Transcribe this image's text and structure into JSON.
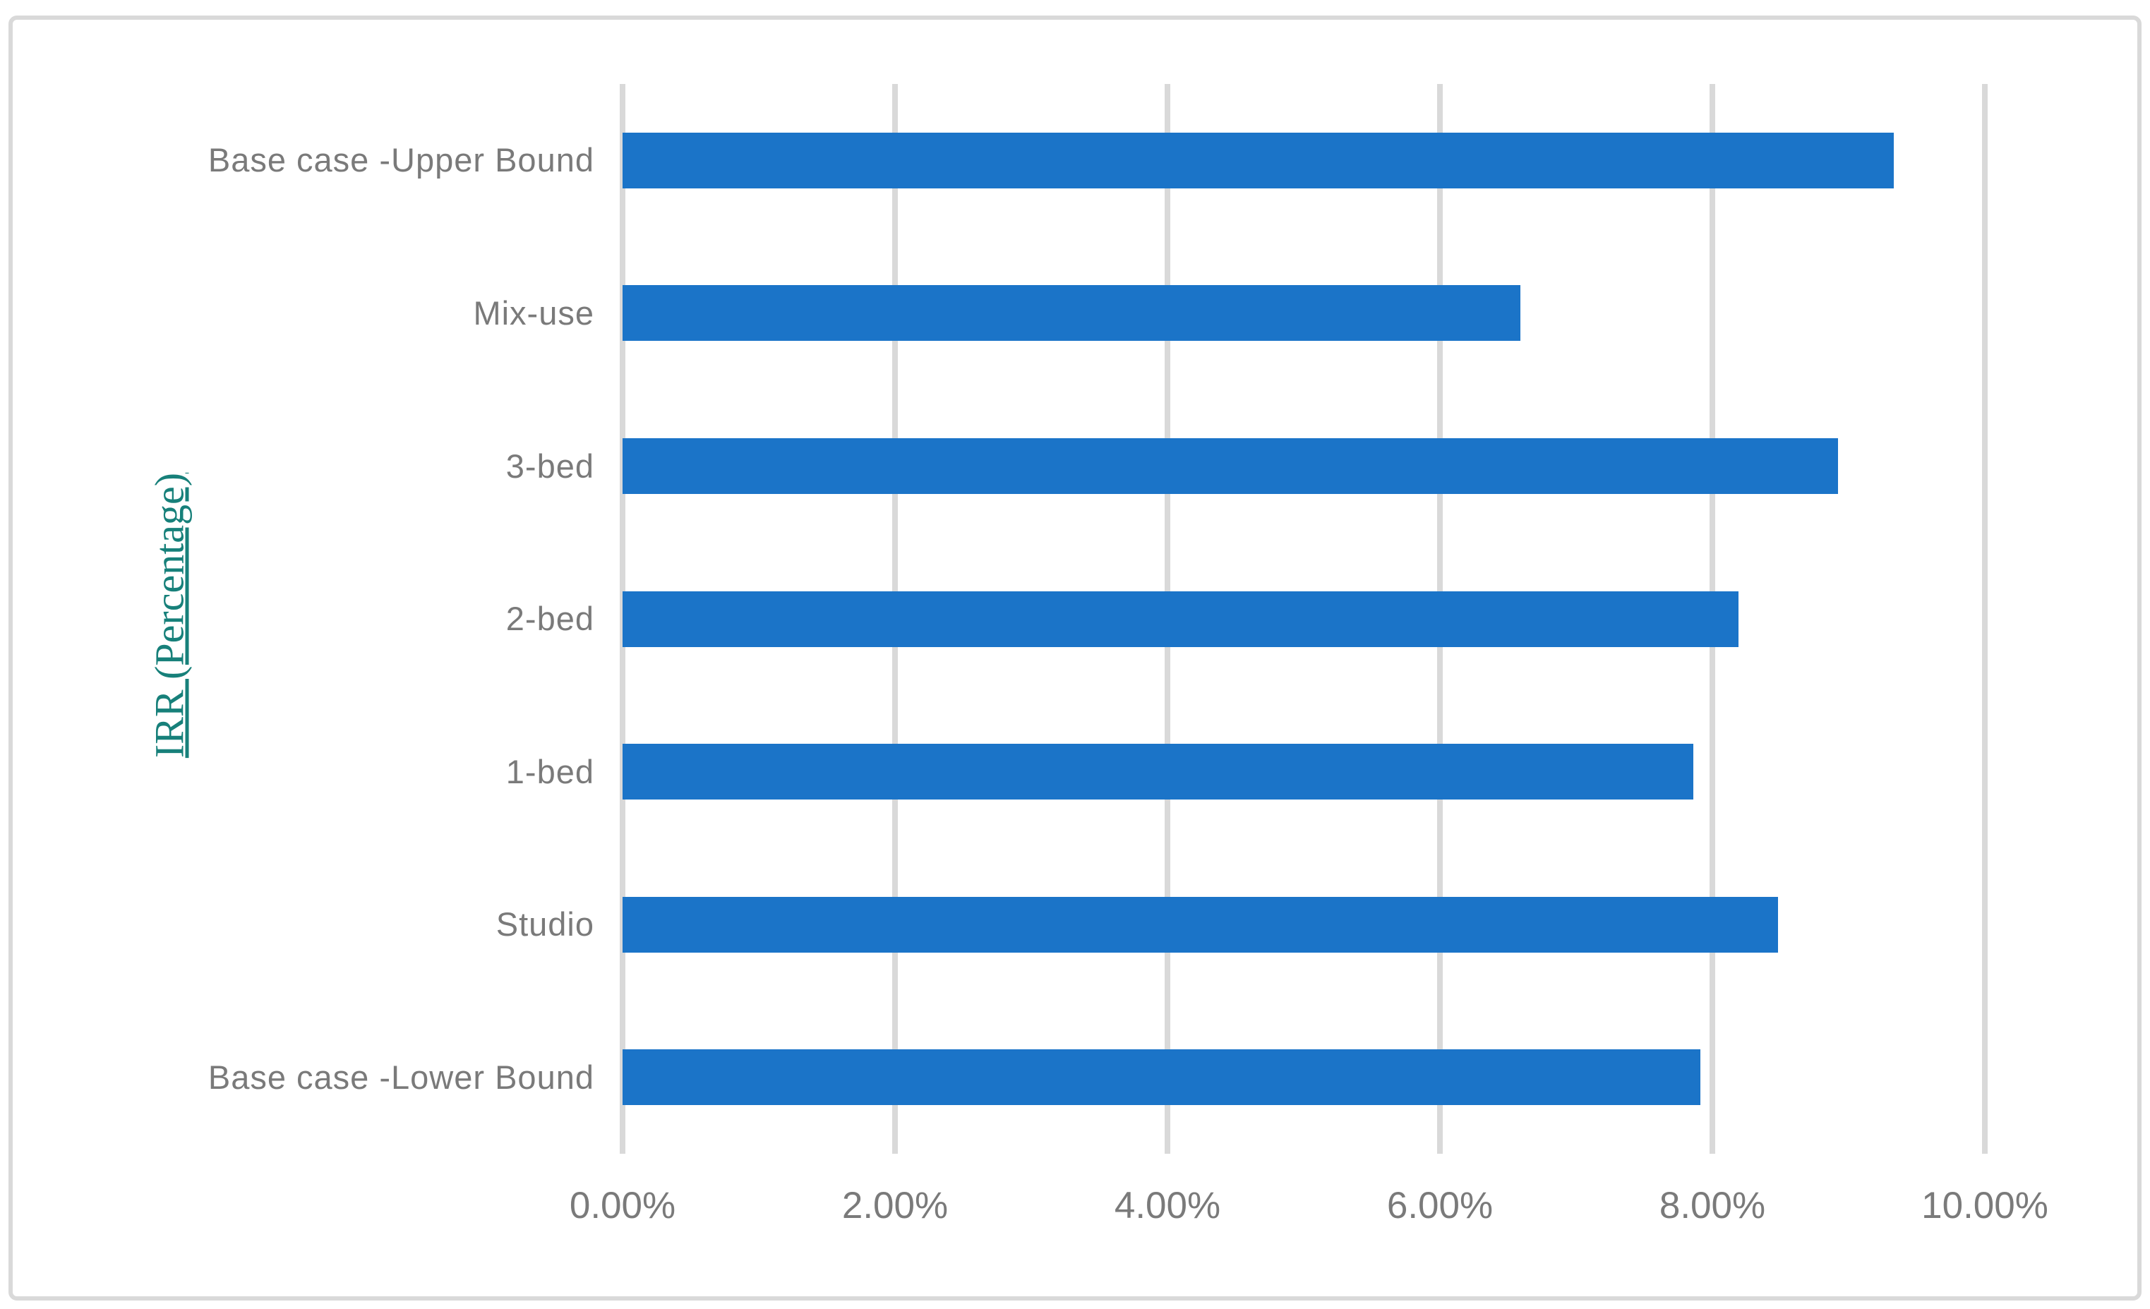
{
  "chart_data": {
    "type": "bar",
    "orientation": "horizontal",
    "title": "",
    "xlabel": "",
    "ylabel": "IRR (Percentage)",
    "categories": [
      "Base case -Upper Bound",
      "Mix-use",
      "3-bed",
      "2-bed",
      "1-bed",
      "Studio",
      "Base case -Lower Bound"
    ],
    "values": [
      9.33,
      6.59,
      8.92,
      8.19,
      7.86,
      8.48,
      7.91
    ],
    "unit": "%",
    "xlim": [
      0,
      10
    ],
    "x_tick_step": 2,
    "x_ticks": [
      "0.00%",
      "2.00%",
      "4.00%",
      "6.00%",
      "8.00%",
      "10.00%"
    ],
    "grid": true,
    "legend": false,
    "bar_color": "#1b74c8"
  },
  "colors": {
    "bar": "#1b74c8",
    "gridline": "#d9d9d9",
    "frame_border": "#d9d9d9",
    "tick_label": "#7a7a7a",
    "axis_title": "#17807a",
    "background": "#ffffff"
  }
}
